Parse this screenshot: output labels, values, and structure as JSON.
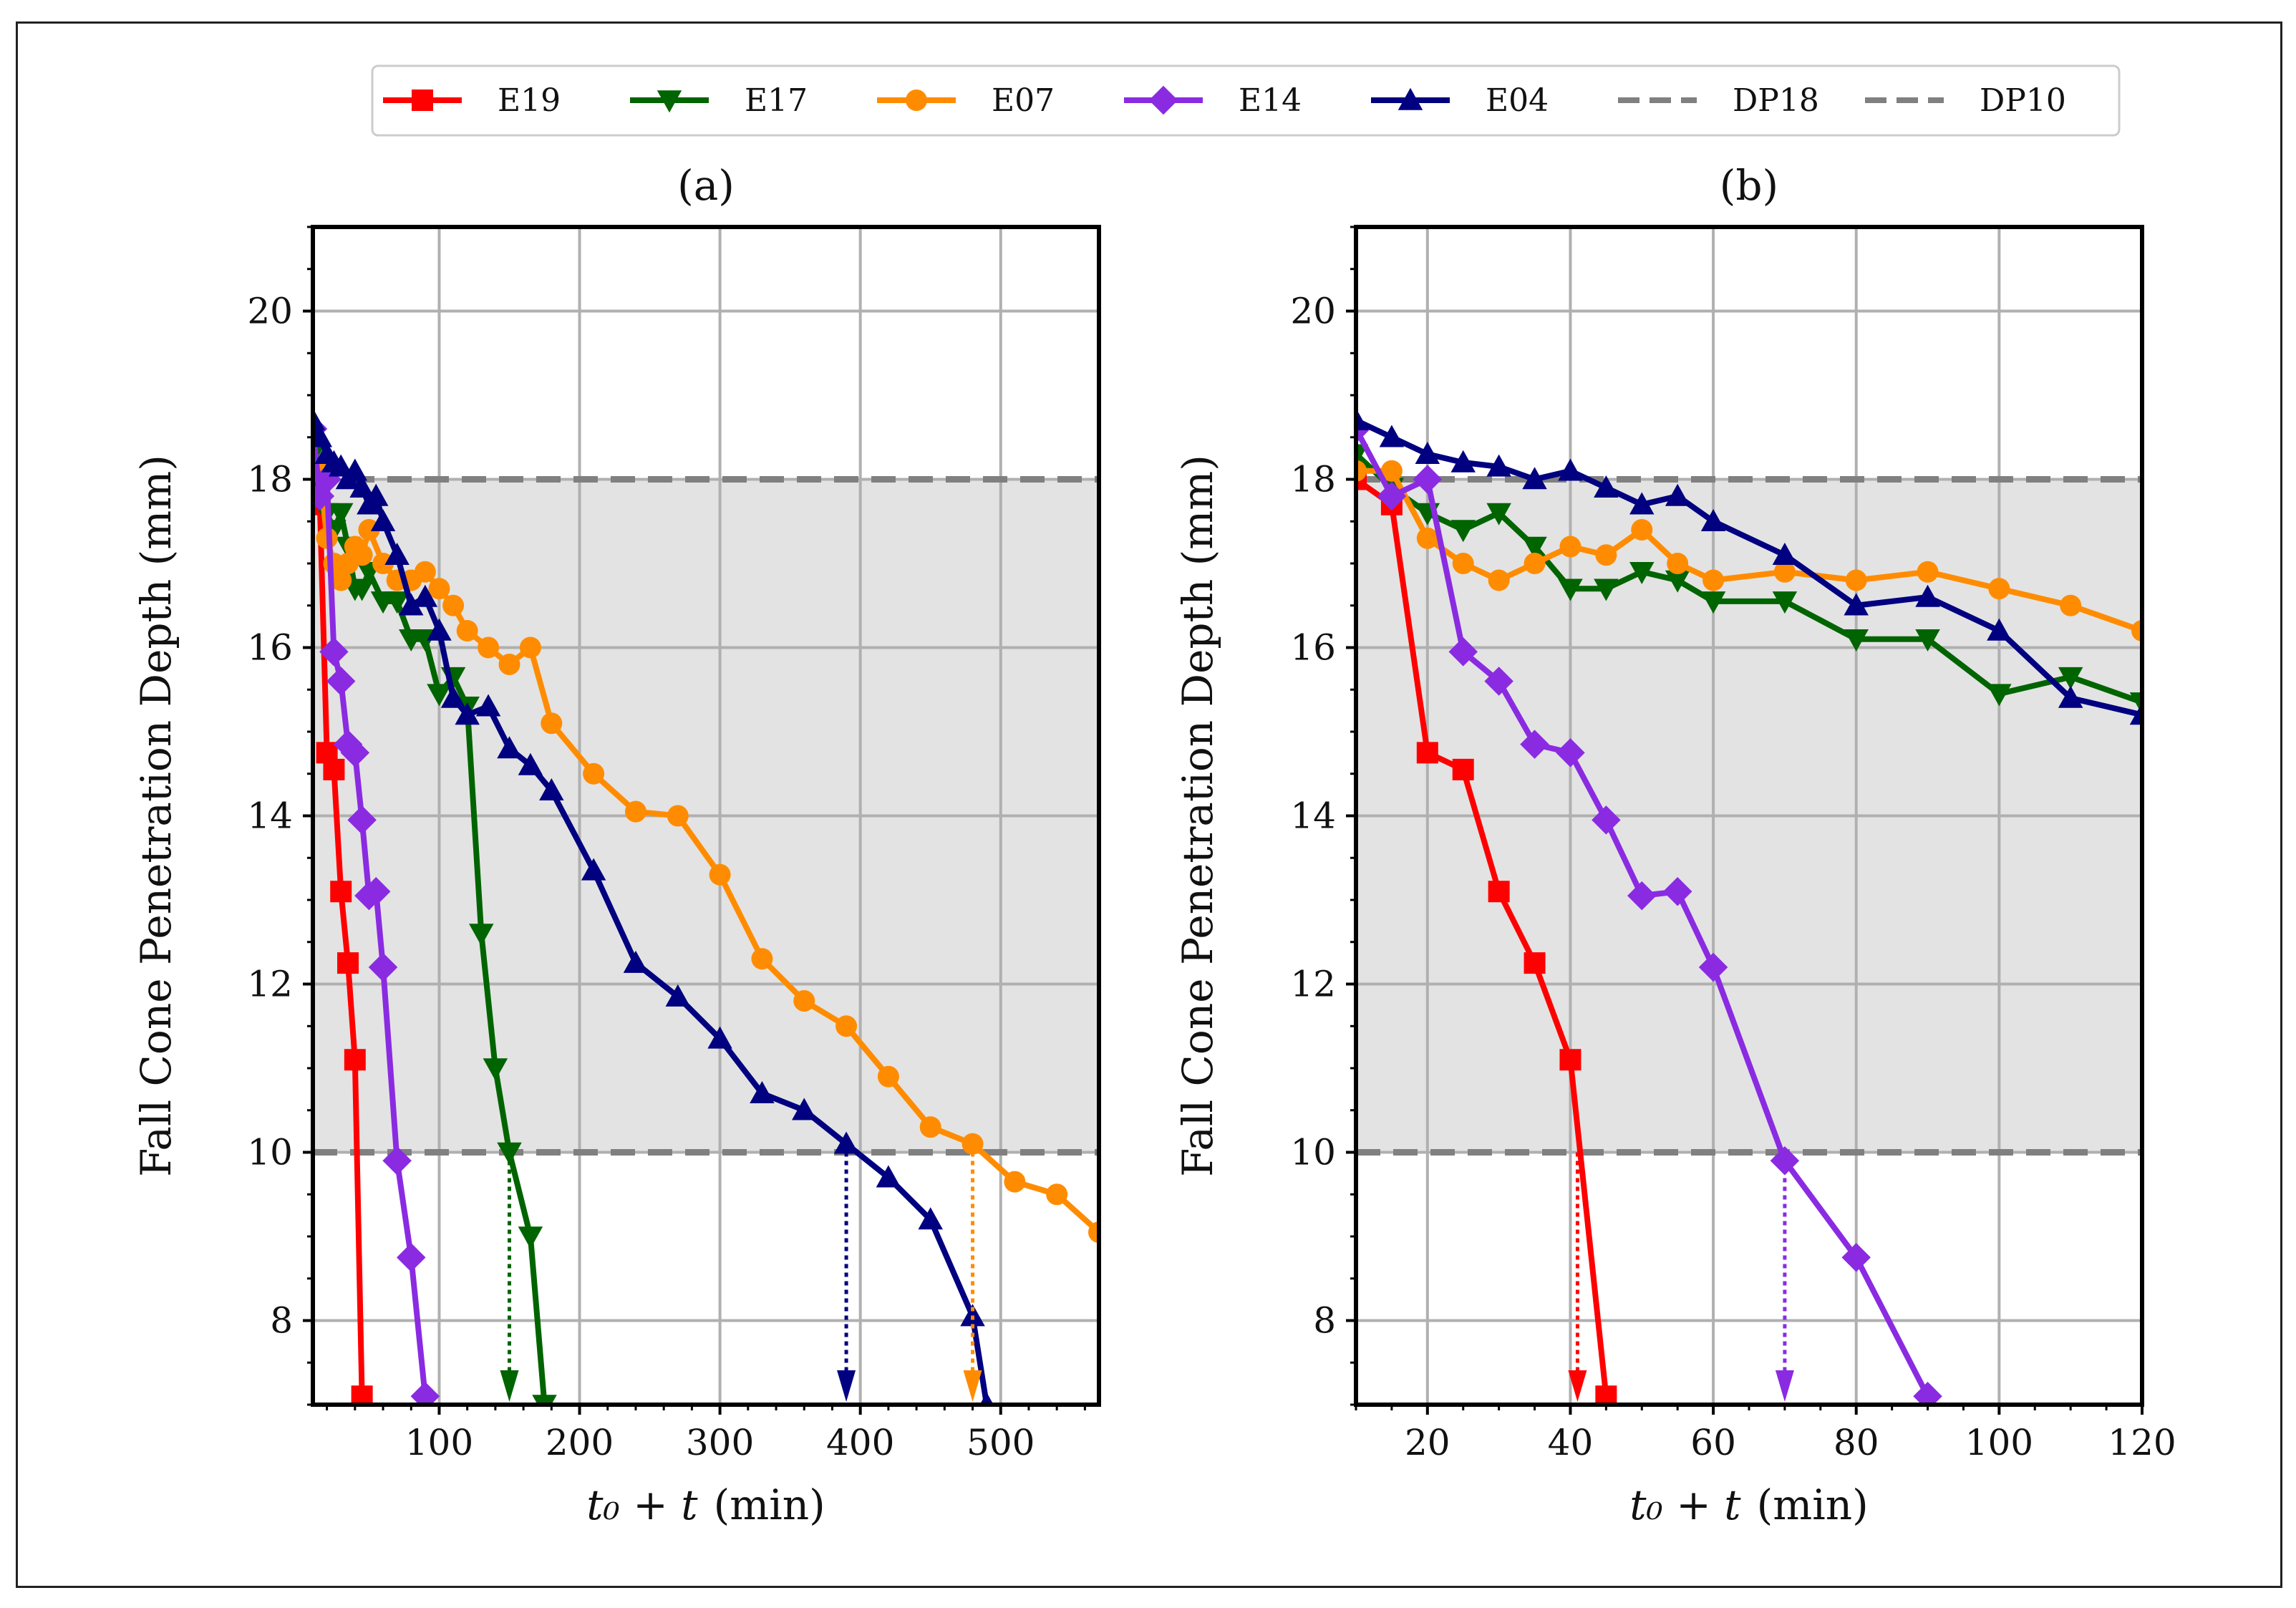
{
  "chart_data": [
    {
      "type": "line",
      "title": "(a)",
      "xlabel_var": "t₀ + t",
      "xlabel_unit": "(min)",
      "ylabel": "Fall Cone Penetration Depth (mm)",
      "xlim": [
        10,
        570
      ],
      "ylim": [
        7,
        21
      ],
      "xticks": [
        100,
        200,
        300,
        400,
        500
      ],
      "yticks": [
        8,
        10,
        12,
        14,
        16,
        18,
        20
      ],
      "grid": true,
      "shaded_band": [
        10,
        18
      ],
      "series": [
        {
          "name": "E19",
          "color": "#ff0000",
          "marker": "square",
          "x": [
            10,
            15,
            20,
            25,
            30,
            35,
            40,
            45
          ],
          "y": [
            18.0,
            17.7,
            14.75,
            14.55,
            13.1,
            12.25,
            11.1,
            7.1
          ]
        },
        {
          "name": "E17",
          "color": "#006400",
          "marker": "triangle-down",
          "x": [
            10,
            15,
            20,
            25,
            30,
            35,
            40,
            45,
            50,
            60,
            70,
            80,
            90,
            100,
            110,
            120,
            130,
            140,
            150,
            165,
            175
          ],
          "y": [
            18.3,
            17.9,
            17.6,
            17.4,
            17.6,
            17.2,
            16.7,
            16.7,
            16.9,
            16.55,
            16.55,
            16.1,
            16.1,
            15.45,
            15.65,
            15.3,
            12.6,
            11.0,
            10.0,
            9.0,
            7.0
          ]
        },
        {
          "name": "E07",
          "color": "#ff8c00",
          "marker": "circle",
          "x": [
            10,
            15,
            20,
            25,
            30,
            35,
            40,
            45,
            50,
            60,
            70,
            80,
            90,
            100,
            110,
            120,
            135,
            150,
            165,
            180,
            210,
            240,
            270,
            300,
            330,
            360,
            390,
            420,
            450,
            480,
            510,
            540,
            570
          ],
          "y": [
            18.1,
            18.1,
            17.3,
            17.0,
            16.8,
            17.0,
            17.2,
            17.1,
            17.4,
            17.0,
            16.8,
            16.8,
            16.9,
            16.7,
            16.5,
            16.2,
            16.0,
            15.8,
            16.0,
            15.1,
            14.5,
            14.05,
            14.0,
            13.3,
            12.3,
            11.8,
            11.5,
            10.9,
            10.3,
            10.1,
            9.65,
            9.5,
            9.05
          ]
        },
        {
          "name": "E14",
          "color": "#8a2be2",
          "marker": "diamond",
          "x": [
            10,
            15,
            20,
            25,
            30,
            35,
            40,
            45,
            50,
            55,
            60,
            70,
            80,
            90
          ],
          "y": [
            18.6,
            17.8,
            18.0,
            15.95,
            15.6,
            14.85,
            14.75,
            13.95,
            13.05,
            13.1,
            12.2,
            9.9,
            8.75,
            7.1
          ]
        },
        {
          "name": "E04",
          "color": "#000080",
          "marker": "triangle-up",
          "x": [
            10,
            15,
            20,
            25,
            30,
            35,
            40,
            45,
            50,
            55,
            60,
            70,
            80,
            90,
            100,
            110,
            120,
            135,
            150,
            165,
            180,
            210,
            240,
            270,
            300,
            330,
            360,
            390,
            420,
            450,
            480,
            490
          ],
          "y": [
            18.7,
            18.5,
            18.3,
            18.2,
            18.15,
            18.0,
            18.1,
            17.9,
            17.7,
            17.8,
            17.5,
            17.1,
            16.5,
            16.6,
            16.2,
            15.4,
            15.2,
            15.3,
            14.8,
            14.6,
            14.3,
            13.35,
            12.25,
            11.85,
            11.35,
            10.7,
            10.5,
            10.1,
            9.7,
            9.2,
            8.05,
            7.0
          ]
        }
      ],
      "reference_lines": [
        {
          "name": "DP18",
          "y": 18,
          "color": "#808080",
          "style": "dashed"
        },
        {
          "name": "DP10",
          "y": 10,
          "color": "#808080",
          "style": "dashed"
        }
      ],
      "annotations": [
        {
          "series": "E17",
          "x": 150,
          "color": "#006400"
        },
        {
          "series": "E04",
          "x": 390,
          "color": "#000080"
        },
        {
          "series": "E07",
          "x": 480,
          "color": "#ff8c00"
        }
      ]
    },
    {
      "type": "line",
      "title": "(b)",
      "xlabel_var": "t₀ + t",
      "xlabel_unit": "(min)",
      "ylabel": "Fall Cone Penetration Depth (mm)",
      "xlim": [
        10,
        120
      ],
      "ylim": [
        7,
        21
      ],
      "xticks": [
        20,
        40,
        60,
        80,
        100,
        120
      ],
      "yticks": [
        8,
        10,
        12,
        14,
        16,
        18,
        20
      ],
      "grid": true,
      "shaded_band": [
        10,
        18
      ],
      "series": [
        {
          "name": "E19",
          "color": "#ff0000",
          "marker": "square",
          "x": [
            10,
            15,
            20,
            25,
            30,
            35,
            40,
            45
          ],
          "y": [
            18.0,
            17.7,
            14.75,
            14.55,
            13.1,
            12.25,
            11.1,
            7.1
          ]
        },
        {
          "name": "E17",
          "color": "#006400",
          "marker": "triangle-down",
          "x": [
            10,
            15,
            20,
            25,
            30,
            35,
            40,
            45,
            50,
            55,
            60,
            70,
            80,
            90,
            100,
            110,
            120
          ],
          "y": [
            18.3,
            17.9,
            17.6,
            17.4,
            17.6,
            17.2,
            16.7,
            16.7,
            16.9,
            16.8,
            16.55,
            16.55,
            16.1,
            16.1,
            15.45,
            15.65,
            15.35
          ]
        },
        {
          "name": "E07",
          "color": "#ff8c00",
          "marker": "circle",
          "x": [
            10,
            15,
            20,
            25,
            30,
            35,
            40,
            45,
            50,
            55,
            60,
            70,
            80,
            90,
            100,
            110,
            120
          ],
          "y": [
            18.1,
            18.1,
            17.3,
            17.0,
            16.8,
            17.0,
            17.2,
            17.1,
            17.4,
            17.0,
            16.8,
            16.9,
            16.8,
            16.9,
            16.7,
            16.5,
            16.2
          ]
        },
        {
          "name": "E14",
          "color": "#8a2be2",
          "marker": "diamond",
          "x": [
            10,
            15,
            20,
            25,
            30,
            35,
            40,
            45,
            50,
            55,
            60,
            70,
            80,
            90
          ],
          "y": [
            18.6,
            17.8,
            18.0,
            15.95,
            15.6,
            14.85,
            14.75,
            13.95,
            13.05,
            13.1,
            12.2,
            9.9,
            8.75,
            7.1
          ]
        },
        {
          "name": "E04",
          "color": "#000080",
          "marker": "triangle-up",
          "x": [
            10,
            15,
            20,
            25,
            30,
            35,
            40,
            45,
            50,
            55,
            60,
            70,
            80,
            90,
            100,
            110,
            120
          ],
          "y": [
            18.7,
            18.5,
            18.3,
            18.2,
            18.15,
            18.0,
            18.1,
            17.9,
            17.7,
            17.8,
            17.5,
            17.1,
            16.5,
            16.6,
            16.2,
            15.4,
            15.2
          ]
        }
      ],
      "reference_lines": [
        {
          "name": "DP18",
          "y": 18,
          "color": "#808080",
          "style": "dashed"
        },
        {
          "name": "DP10",
          "y": 10,
          "color": "#808080",
          "style": "dashed"
        }
      ],
      "annotations": [
        {
          "series": "E19",
          "x": 41,
          "color": "#ff0000"
        },
        {
          "series": "E14",
          "x": 70,
          "color": "#8a2be2"
        }
      ]
    }
  ],
  "legend": {
    "placement": "top-center",
    "entries": [
      {
        "label": "E19",
        "color": "#ff0000",
        "marker": "square",
        "style": "solid"
      },
      {
        "label": "E17",
        "color": "#006400",
        "marker": "triangle-down",
        "style": "solid"
      },
      {
        "label": "E07",
        "color": "#ff8c00",
        "marker": "circle",
        "style": "solid"
      },
      {
        "label": "E14",
        "color": "#8a2be2",
        "marker": "diamond",
        "style": "solid"
      },
      {
        "label": "E04",
        "color": "#000080",
        "marker": "triangle-up",
        "style": "solid"
      },
      {
        "label": "DP18",
        "color": "#808080",
        "marker": "none",
        "style": "dashed"
      },
      {
        "label": "DP10",
        "color": "#808080",
        "marker": "none",
        "style": "dashed"
      }
    ]
  },
  "colors": {
    "band": "#e3e3e3",
    "grid": "#b0b0b0",
    "axis": "#000000"
  }
}
